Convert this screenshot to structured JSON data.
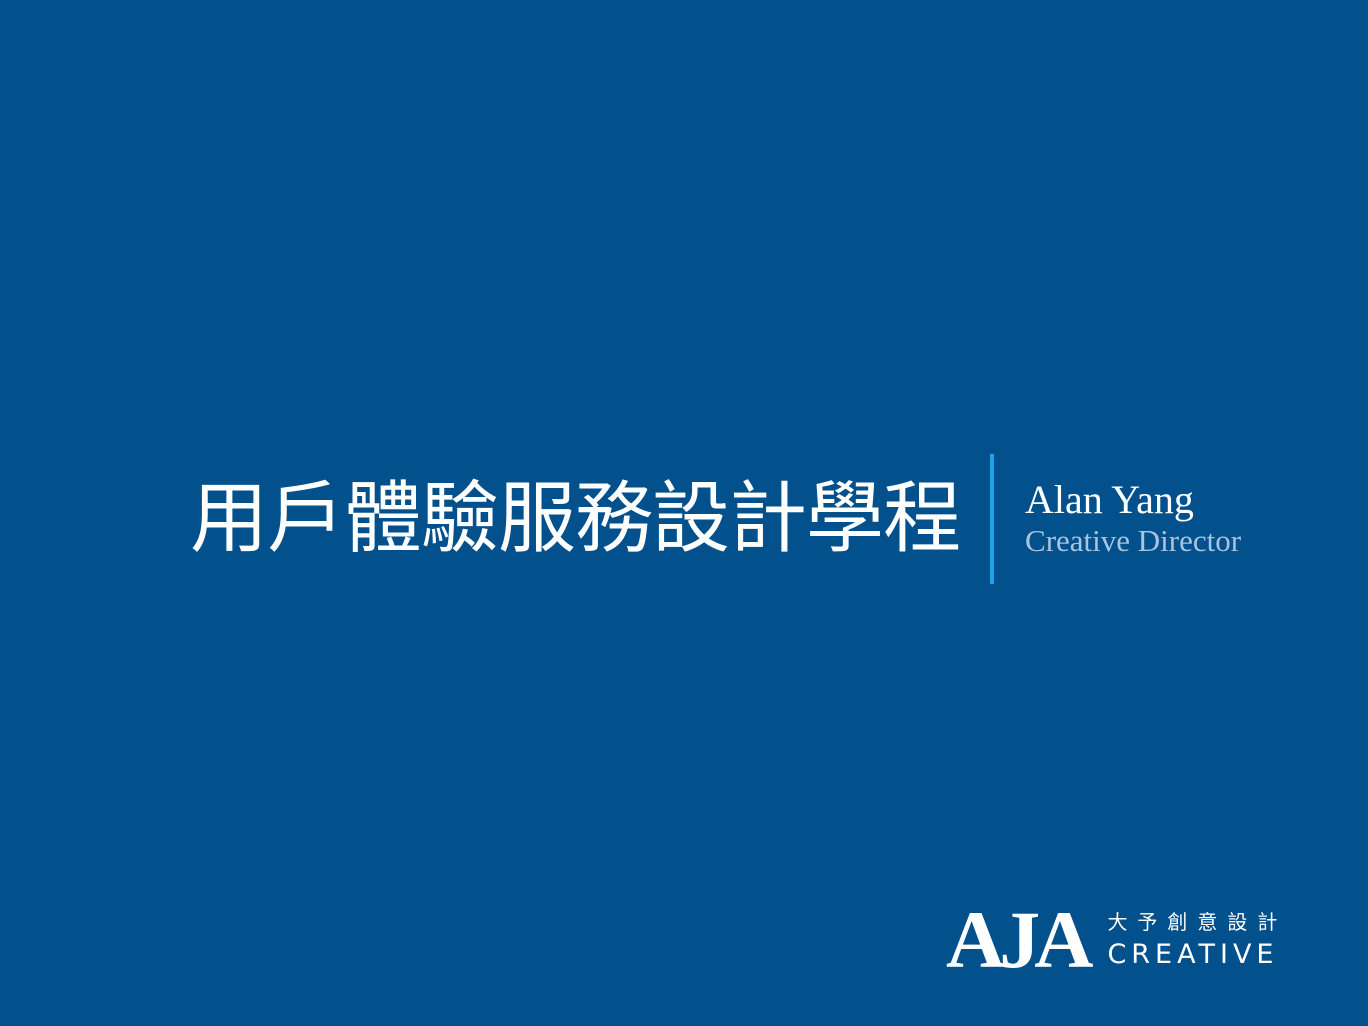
{
  "slide": {
    "title": "用戶體驗服務設計學程",
    "presenter": {
      "name": "Alan Yang",
      "role": "Creative Director"
    },
    "logo": {
      "mark": "AJA",
      "chinese": "大予創意設計",
      "english": "CREATIVE"
    }
  },
  "colors": {
    "background": "#02508c",
    "divider": "#1aa3e8",
    "text": "#ffffff",
    "subtext": "#a8c4de"
  }
}
